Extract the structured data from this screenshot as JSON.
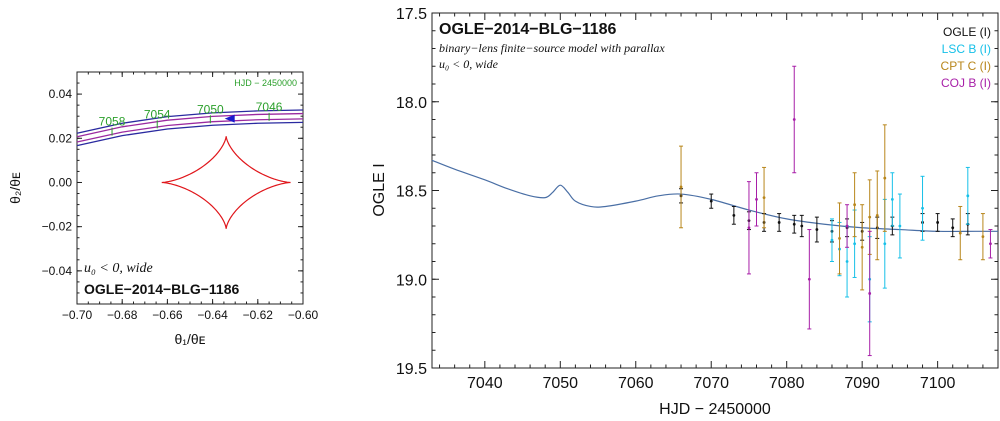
{
  "chart_data": [
    {
      "type": "line",
      "panel": "source-trajectory",
      "title": "OGLE−2014−BLG−1186",
      "subtitle": "u₀ < 0, wide",
      "xlabel": "θ₁/θᴇ",
      "ylabel": "θ₂/θᴇ",
      "xlim": [
        -0.7,
        -0.6
      ],
      "ylim": [
        -0.055,
        0.05
      ],
      "xticks": [
        "−0.70",
        "−0.68",
        "−0.66",
        "−0.64",
        "−0.62",
        "−0.60"
      ],
      "yticks": [
        "−0.04",
        "−0.02",
        "0.00",
        "0.02",
        "0.04"
      ],
      "date_axis_label": "HJD − 2450000",
      "trajectory": {
        "x": [
          -0.7,
          -0.68,
          -0.66,
          -0.64,
          -0.62,
          -0.6
        ],
        "y": [
          0.0195,
          0.024,
          0.027,
          0.0287,
          0.0296,
          0.03
        ]
      },
      "date_markers": [
        {
          "label": "7058",
          "x": -0.6845
        },
        {
          "label": "7054",
          "x": -0.6645
        },
        {
          "label": "7050",
          "x": -0.641
        },
        {
          "label": "7046",
          "x": -0.615
        }
      ],
      "caustic": {
        "type": "astroid",
        "center": [
          -0.634,
          0.0
        ],
        "half_width": 0.0285,
        "half_height": 0.021
      },
      "colors": {
        "trajectory": "#2a2aa0",
        "source_band": "#9b2aa0",
        "caustic": "#e0161b",
        "dates": "#2ca02c",
        "arrow": "#1a1acc"
      }
    },
    {
      "type": "scatter",
      "panel": "light-curve",
      "title": "OGLE−2014−BLG−1186",
      "subtitle": "binary−lens finite−source model with parallax",
      "subtitle2": "u₀ < 0, wide",
      "xlabel": "HJD − 2450000",
      "ylabel": "OGLE I",
      "xlim": [
        7033,
        7108
      ],
      "ylim": [
        19.5,
        17.5
      ],
      "xticks": [
        "7040",
        "7050",
        "7060",
        "7070",
        "7080",
        "7090",
        "7100"
      ],
      "yticks": [
        "17.5",
        "18.0",
        "18.5",
        "19.0",
        "19.5"
      ],
      "model": {
        "x": [
          7033,
          7036,
          7040,
          7043,
          7046,
          7048,
          7049,
          7050,
          7051,
          7052,
          7054,
          7056,
          7060,
          7063,
          7066,
          7070,
          7075,
          7080,
          7085,
          7090,
          7095,
          7100,
          7105,
          7108
        ],
        "y": [
          18.33,
          18.38,
          18.44,
          18.49,
          18.53,
          18.54,
          18.51,
          18.47,
          18.51,
          18.56,
          18.59,
          18.59,
          18.56,
          18.53,
          18.52,
          18.55,
          18.61,
          18.66,
          18.69,
          18.71,
          18.72,
          18.73,
          18.73,
          18.73
        ]
      },
      "series": [
        {
          "name": "OGLE (I)",
          "color": "#111111",
          "points": [
            [
              7066,
              18.53,
              0.04
            ],
            [
              7070,
              18.56,
              0.04
            ],
            [
              7073,
              18.64,
              0.05
            ],
            [
              7075,
              18.67,
              0.05
            ],
            [
              7077,
              18.68,
              0.05
            ],
            [
              7079,
              18.68,
              0.05
            ],
            [
              7081,
              18.69,
              0.05
            ],
            [
              7082,
              18.7,
              0.06
            ],
            [
              7084,
              18.72,
              0.07
            ],
            [
              7086,
              18.73,
              0.06
            ],
            [
              7088,
              18.71,
              0.05
            ],
            [
              7090,
              18.73,
              0.05
            ],
            [
              7092,
              18.71,
              0.06
            ],
            [
              7094,
              18.7,
              0.05
            ],
            [
              7098,
              18.68,
              0.05
            ],
            [
              7100,
              18.68,
              0.05
            ],
            [
              7102,
              18.71,
              0.05
            ],
            [
              7104,
              18.69,
              0.06
            ]
          ]
        },
        {
          "name": "LSC B (I)",
          "color": "#17c0e8",
          "points": [
            [
              7086,
              18.78,
              0.12
            ],
            [
              7087,
              18.83,
              0.15
            ],
            [
              7088,
              18.9,
              0.2
            ],
            [
              7089,
              18.8,
              0.19
            ],
            [
              7091,
              19.0,
              0.24
            ],
            [
              7093,
              18.8,
              0.25
            ],
            [
              7094,
              18.55,
              0.15
            ],
            [
              7095,
              18.7,
              0.18
            ],
            [
              7098,
              18.6,
              0.18
            ],
            [
              7104,
              18.53,
              0.16
            ]
          ]
        },
        {
          "name": "CPT C (I)",
          "color": "#b8861b",
          "points": [
            [
              7066,
              18.48,
              0.23
            ],
            [
              7077,
              18.54,
              0.17
            ],
            [
              7087,
              18.77,
              0.2
            ],
            [
              7089,
              18.58,
              0.18
            ],
            [
              7090,
              18.82,
              0.24
            ],
            [
              7091,
              18.65,
              0.21
            ],
            [
              7092,
              18.64,
              0.25
            ],
            [
              7093,
              18.43,
              0.3
            ],
            [
              7103,
              18.74,
              0.15
            ],
            [
              7106,
              18.76,
              0.13
            ]
          ]
        },
        {
          "name": "COJ B (I)",
          "color": "#a81fa8",
          "points": [
            [
              7075,
              18.71,
              0.26
            ],
            [
              7076,
              18.55,
              0.15
            ],
            [
              7081,
              18.1,
              0.3
            ],
            [
              7083,
              19.0,
              0.28
            ],
            [
              7088,
              18.7,
              0.12
            ],
            [
              7091,
              19.08,
              0.35
            ],
            [
              7107,
              18.8,
              0.08
            ]
          ]
        }
      ],
      "legend": "top-right"
    }
  ]
}
